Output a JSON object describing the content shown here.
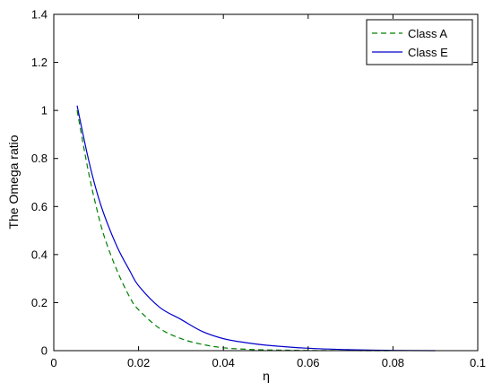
{
  "chart_data": {
    "type": "line",
    "title": "",
    "xlabel": "η",
    "ylabel": "The Omega ratio",
    "xlim": [
      0,
      0.1
    ],
    "ylim": [
      0,
      1.4
    ],
    "xticks": [
      0,
      0.02,
      0.04,
      0.06,
      0.08,
      0.1
    ],
    "xtick_labels": [
      "0",
      "0.02",
      "0.04",
      "0.06",
      "0.08",
      "0.1"
    ],
    "yticks": [
      0,
      0.2,
      0.4,
      0.6,
      0.8,
      1.0,
      1.2,
      1.4
    ],
    "ytick_labels": [
      "0",
      "0.2",
      "0.4",
      "0.6",
      "0.8",
      "1",
      "1.2",
      "1.4"
    ],
    "grid": false,
    "legend_position": "top-right",
    "series": [
      {
        "name": "Class A",
        "color": "#008000",
        "style": "dashed",
        "x": [
          0.0055,
          0.008,
          0.01,
          0.012,
          0.015,
          0.018,
          0.02,
          0.025,
          0.03,
          0.035,
          0.04,
          0.045,
          0.05,
          0.06,
          0.07,
          0.08
        ],
        "y": [
          1.0,
          0.76,
          0.6,
          0.47,
          0.33,
          0.22,
          0.17,
          0.092,
          0.05,
          0.026,
          0.012,
          0.006,
          0.003,
          0.0008,
          0.0002,
          0.0
        ]
      },
      {
        "name": "Class E",
        "color": "#0000cc",
        "style": "solid",
        "x": [
          0.0055,
          0.008,
          0.01,
          0.012,
          0.015,
          0.018,
          0.02,
          0.025,
          0.03,
          0.035,
          0.04,
          0.045,
          0.05,
          0.06,
          0.07,
          0.08,
          0.09
        ],
        "y": [
          1.02,
          0.81,
          0.67,
          0.56,
          0.43,
          0.33,
          0.27,
          0.18,
          0.13,
          0.08,
          0.05,
          0.034,
          0.023,
          0.01,
          0.004,
          0.001,
          0.0
        ]
      }
    ]
  }
}
